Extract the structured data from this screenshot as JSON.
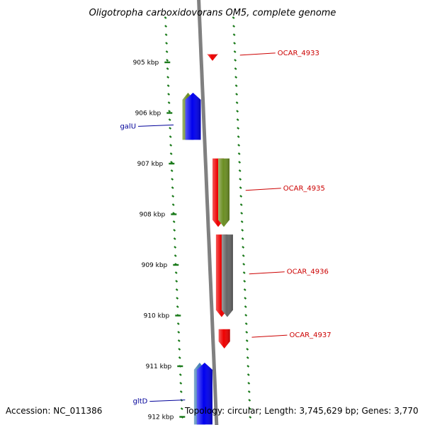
{
  "title": "Oligotropha carboxidovorans OM5, complete genome",
  "footer": {
    "accession": "Accession: NC_011386",
    "summary": "Topology: circular; Length: 3,745,629 bp; Genes: 3,770"
  },
  "ruler": [
    {
      "label": "905 kbp",
      "kbp": 905
    },
    {
      "label": "906 kbp",
      "kbp": 906
    },
    {
      "label": "907 kbp",
      "kbp": 907
    },
    {
      "label": "908 kbp",
      "kbp": 908
    },
    {
      "label": "909 kbp",
      "kbp": 909
    },
    {
      "label": "910 kbp",
      "kbp": 910
    },
    {
      "label": "911 kbp",
      "kbp": 911
    },
    {
      "label": "912 kbp",
      "kbp": 912
    }
  ],
  "gene_labels": [
    {
      "text": "OCAR_4933",
      "kbp": 904.83,
      "strand": "reverse",
      "color": "#cc0000"
    },
    {
      "text": "galU",
      "kbp": 906.25,
      "strand": "forward",
      "color": "#000099"
    },
    {
      "text": "OCAR_4935",
      "kbp": 907.5,
      "strand": "reverse",
      "color": "#cc0000"
    },
    {
      "text": "OCAR_4936",
      "kbp": 909.15,
      "strand": "reverse",
      "color": "#cc0000"
    },
    {
      "text": "OCAR_4937",
      "kbp": 910.4,
      "strand": "reverse",
      "color": "#cc0000"
    },
    {
      "text": "gltD",
      "kbp": 911.68,
      "strand": "forward",
      "color": "#000099"
    }
  ],
  "features": [
    {
      "feature": "CDS",
      "strand": "reverse",
      "start_kbp": 904.84,
      "end_kbp": 904.97,
      "color": "#ee0000"
    },
    {
      "feature": "gene",
      "strand": "forward",
      "start_kbp": 905.6,
      "end_kbp": 906.53,
      "color": "#6b8e23"
    },
    {
      "feature": "CDS",
      "strand": "forward",
      "start_kbp": 905.6,
      "end_kbp": 906.53,
      "color": "#0000ee"
    },
    {
      "feature": "CDS",
      "strand": "reverse",
      "start_kbp": 906.9,
      "end_kbp": 908.25,
      "color": "#ee0000"
    },
    {
      "feature": "gene",
      "strand": "reverse",
      "start_kbp": 906.9,
      "end_kbp": 908.25,
      "color": "#6b8e23"
    },
    {
      "feature": "CDS",
      "strand": "reverse",
      "start_kbp": 908.4,
      "end_kbp": 910.03,
      "color": "#ee0000"
    },
    {
      "feature": "gene",
      "strand": "reverse",
      "start_kbp": 908.4,
      "end_kbp": 910.03,
      "color": "#666666"
    },
    {
      "feature": "CDS",
      "strand": "reverse",
      "start_kbp": 910.27,
      "end_kbp": 910.65,
      "color": "#ee0000"
    },
    {
      "feature": "gene",
      "strand": "forward",
      "start_kbp": 910.93,
      "end_kbp": 912.15,
      "color": "#4682b4"
    },
    {
      "feature": "CDS",
      "strand": "forward",
      "start_kbp": 910.93,
      "end_kbp": 912.15,
      "color": "#0000ee"
    }
  ],
  "colors": {
    "backbone": "#808080",
    "ruler_ticks": "#1a7a1a",
    "ruler_text": "#000000"
  }
}
